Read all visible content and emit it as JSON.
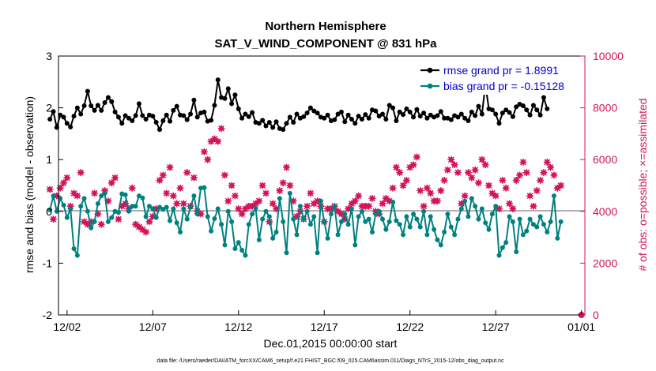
{
  "chart_data": {
    "type": "line",
    "title": "Northern Hemisphere",
    "subtitle": "SAT_V_WIND_COMPONENT @ 831 hPa",
    "xlabel": "Dec.01,2015 00:00:00 start",
    "ylabel": "rmse and bias (model - observation)",
    "y2label": "# of obs: o=possible; ×=assimilated",
    "xlim_days": [
      0.5,
      31.2
    ],
    "ylim": [
      -2,
      3
    ],
    "y2lim": [
      0,
      10000
    ],
    "x_ticks": [
      {
        "day": 1,
        "label": "12/02"
      },
      {
        "day": 6,
        "label": "12/07"
      },
      {
        "day": 11,
        "label": "12/12"
      },
      {
        "day": 16,
        "label": "12/17"
      },
      {
        "day": 21,
        "label": "12/22"
      },
      {
        "day": 26,
        "label": "12/27"
      },
      {
        "day": 31,
        "label": "01/01"
      }
    ],
    "y_ticks": [
      "-2",
      "-1",
      "0",
      "1",
      "2",
      "3"
    ],
    "y2_ticks": [
      "0",
      "2000",
      "4000",
      "6000",
      "8000",
      "10000"
    ],
    "grid": false,
    "legend_position": "top-right",
    "obs_last": {
      "day": 31,
      "value": 0
    },
    "series": [
      {
        "name": "rmse",
        "legend": "rmse grand pr = 1.8991",
        "color": "#000000",
        "values": [
          1.78,
          1.93,
          1.62,
          1.86,
          1.82,
          1.7,
          1.63,
          1.84,
          2.0,
          1.88,
          2.04,
          2.32,
          2.04,
          1.95,
          2.05,
          1.95,
          2.1,
          2.2,
          2.12,
          1.92,
          1.82,
          1.7,
          1.85,
          1.8,
          1.75,
          1.85,
          2.08,
          1.85,
          1.78,
          1.86,
          1.84,
          1.72,
          1.58,
          1.75,
          1.86,
          1.74,
          1.95,
          2.03,
          1.86,
          1.85,
          1.77,
          1.88,
          2.15,
          1.82,
          1.9,
          1.92,
          1.74,
          1.76,
          2.05,
          2.54,
          2.2,
          2.18,
          2.37,
          2.08,
          2.25,
          1.98,
          1.8,
          1.88,
          1.83,
          1.91,
          1.72,
          1.7,
          1.76,
          1.65,
          1.72,
          1.62,
          1.73,
          1.6,
          1.58,
          1.7,
          1.82,
          1.72,
          1.88,
          1.8,
          1.83,
          1.9,
          2.0,
          1.94,
          1.9,
          1.82,
          1.8,
          1.86,
          1.75,
          1.77,
          1.88,
          1.92,
          1.73,
          1.86,
          1.78,
          1.7,
          1.84,
          1.78,
          1.87,
          1.8,
          1.96,
          1.94,
          1.84,
          1.88,
          1.78,
          2.05,
          2.0,
          1.75,
          1.92,
          1.87,
          1.98,
          1.92,
          1.82,
          1.97,
          1.84,
          1.9,
          1.8,
          1.86,
          1.82,
          1.85,
          1.93,
          1.8,
          1.8,
          1.77,
          1.85,
          1.82,
          1.88,
          1.8,
          1.75,
          1.92,
          1.85,
          2.03,
          1.88,
          2.45,
          1.98,
          1.96,
          1.88,
          1.7,
          1.9,
          1.96,
          1.91,
          1.83,
          2.02,
          2.07,
          2.04,
          1.96,
          1.86,
          2.05,
          1.96,
          1.86,
          2.2,
          1.98
        ]
      },
      {
        "name": "bias",
        "legend": "bias grand pr = -0.15128",
        "color": "#008080",
        "values": [
          0.03,
          0.3,
          0.0,
          0.25,
          0.12,
          -0.12,
          0.05,
          -0.72,
          -0.85,
          0.1,
          0.25,
          0.0,
          -0.32,
          -0.2,
          0.15,
          0.3,
          0.35,
          -0.2,
          -0.12,
          0.0,
          -0.02,
          0.34,
          0.32,
          0.0,
          0.1,
          0.1,
          0.3,
          0.26,
          -0.1,
          0.1,
          0.05,
          -0.12,
          0.08,
          0.04,
          0.08,
          -0.18,
          0.05,
          -0.22,
          -0.4,
          0.05,
          -0.15,
          0.08,
          0.3,
          -0.05,
          0.45,
          0.46,
          -0.1,
          -0.38,
          -0.14,
          0.05,
          -0.25,
          -0.65,
          0.0,
          -0.2,
          -0.72,
          -0.6,
          -0.75,
          -0.85,
          -0.25,
          -0.05,
          0.06,
          -0.55,
          -0.15,
          0.0,
          -0.1,
          -0.52,
          -0.4,
          0.25,
          -0.2,
          -0.8,
          0.35,
          -0.15,
          -0.45,
          0.1,
          -0.15,
          0.0,
          -0.25,
          -0.1,
          -0.8,
          0.2,
          -0.2,
          -0.52,
          -0.05,
          0.1,
          -0.45,
          -0.2,
          -0.05,
          -0.25,
          0.05,
          -0.65,
          -0.1,
          0.0,
          -0.2,
          -0.15,
          -0.4,
          -0.05,
          0.0,
          -0.15,
          -0.35,
          -0.2,
          0.18,
          -0.18,
          -0.25,
          -0.45,
          -0.1,
          -0.3,
          -0.05,
          -0.15,
          -0.3,
          0.0,
          -0.45,
          -0.1,
          -0.35,
          -0.55,
          -0.65,
          -0.4,
          -0.05,
          -0.3,
          -0.45,
          -0.15,
          0.05,
          0.2,
          -0.1,
          0.25,
          0.1,
          -0.15,
          0.05,
          -0.22,
          -0.35,
          -0.05,
          0.1,
          -0.85,
          -0.7,
          -0.6,
          -0.1,
          -0.2,
          -0.78,
          -0.15,
          -0.45,
          -0.38,
          -0.15,
          -0.25,
          -0.3,
          -0.1,
          -0.25,
          -0.4,
          -0.2,
          0.3,
          -0.52,
          -0.2
        ]
      },
      {
        "name": "assimilated",
        "color": "#d4145a",
        "axis": "right",
        "values": [
          4850,
          3700,
          4600,
          4900,
          5100,
          5300,
          4200,
          4700,
          4600,
          5500,
          3600,
          3500,
          3600,
          4700,
          3900,
          3500,
          4800,
          4400,
          5100,
          5300,
          3700,
          4200,
          4300,
          4100,
          4900,
          3500,
          3400,
          3300,
          3200,
          3600,
          3800,
          4100,
          5200,
          5400,
          4700,
          5700,
          4600,
          4300,
          4900,
          4300,
          5500,
          4200,
          5300,
          4000,
          3900,
          6300,
          6000,
          6700,
          6800,
          6700,
          7200,
          5400,
          4400,
          5000,
          4600,
          4100,
          3900,
          4100,
          4200,
          4200,
          4300,
          4400,
          5000,
          4700,
          3600,
          4300,
          4100,
          4800,
          5100,
          5700,
          5000,
          4400,
          3800,
          4000,
          3700,
          4200,
          4700,
          4300,
          4400,
          4200,
          3600,
          4100,
          4100,
          4200,
          4000,
          3900,
          3700,
          4100,
          4300,
          4400,
          4600,
          4200,
          4200,
          4200,
          4500,
          4000,
          3900,
          4300,
          4500,
          4400,
          4900,
          5700,
          5500,
          5000,
          5200,
          5700,
          5800,
          6100,
          4800,
          4200,
          4900,
          4700,
          4400,
          4400,
          4800,
          5200,
          5600,
          6000,
          5800,
          5500,
          4300,
          4600,
          5500,
          5300,
          5600,
          5100,
          6000,
          5800,
          5000,
          4700,
          4600,
          4100,
          5200,
          4900,
          4300,
          4100,
          5200,
          5400,
          5900,
          5500,
          4600,
          4200,
          4800,
          5200,
          5500,
          5900,
          5700,
          5400,
          4900,
          5000
        ]
      },
      {
        "name": "possible",
        "color": "#d4145a",
        "axis": "right",
        "values": [
          4850,
          3700,
          4600,
          4900,
          5100,
          5300,
          4200,
          4700,
          4600,
          5500,
          3600,
          3500,
          3600,
          4700,
          3900,
          3500,
          4800,
          4400,
          5100,
          5300,
          3700,
          4200,
          4300,
          4100,
          4900,
          3500,
          3400,
          3300,
          3200,
          3600,
          3800,
          4100,
          5200,
          5400,
          4700,
          5700,
          4600,
          4300,
          4900,
          4300,
          5500,
          4200,
          5300,
          4000,
          3900,
          6300,
          6000,
          6700,
          6800,
          6700,
          7200,
          5400,
          4400,
          5000,
          4600,
          4100,
          3900,
          4100,
          4200,
          4200,
          4300,
          4400,
          5000,
          4700,
          3600,
          4300,
          4100,
          4800,
          5100,
          5700,
          5000,
          4400,
          3800,
          4000,
          3700,
          4200,
          4700,
          4300,
          4400,
          4200,
          3600,
          4100,
          4100,
          4200,
          4000,
          3900,
          3700,
          4100,
          4300,
          4400,
          4600,
          4200,
          4200,
          4200,
          4500,
          4000,
          3900,
          4300,
          4500,
          4400,
          4900,
          5700,
          5500,
          5000,
          5200,
          5700,
          5800,
          6100,
          4800,
          4200,
          4900,
          4700,
          4400,
          4400,
          4800,
          5200,
          5600,
          6000,
          5800,
          5500,
          4300,
          4600,
          5500,
          5300,
          5600,
          5100,
          6000,
          5800,
          5000,
          4700,
          4600,
          4100,
          5200,
          4900,
          4300,
          4100,
          5200,
          5400,
          5900,
          5500,
          4600,
          4200,
          4800,
          5200,
          5500,
          5900,
          5700,
          5400,
          4900,
          5000
        ]
      }
    ]
  },
  "footnote": "data file: /Users/raeder/DAI/ATM_forcXX/CAM6_setup/f.e21.FHIST_BGC.f09_025.CAM6assim.011/Diags_NTrS_2015-12/obs_diag_output.nc",
  "colors": {
    "rmse": "#000000",
    "bias": "#008080",
    "obs": "#d4145a",
    "zero_line": "#b0b0b0",
    "legend_text": "#0000cc"
  }
}
